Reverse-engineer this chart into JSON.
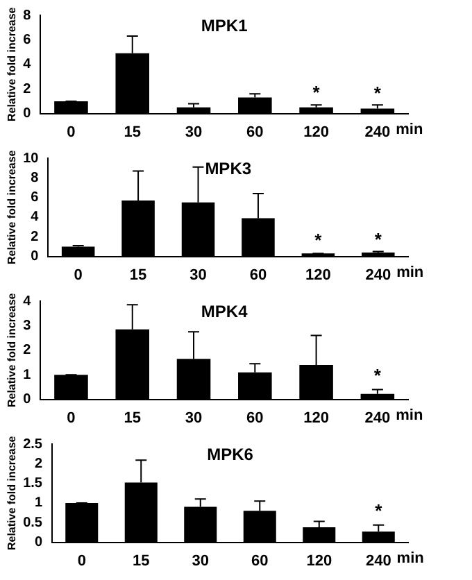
{
  "chart_data": [
    {
      "type": "bar",
      "title": "MPK1",
      "ylabel": "Relative fold increase",
      "xlabel": "min",
      "categories": [
        "0",
        "15",
        "30",
        "60",
        "120",
        "240"
      ],
      "values": [
        1.0,
        4.9,
        0.5,
        1.3,
        0.5,
        0.4
      ],
      "errors": [
        [
          1.0,
          1.0
        ],
        [
          4.9,
          6.3
        ],
        [
          0.5,
          0.8
        ],
        [
          1.3,
          1.6
        ],
        [
          0.5,
          0.7
        ],
        [
          0.4,
          0.7
        ]
      ],
      "color": "#000000",
      "ylim": [
        0,
        8
      ],
      "yticks": [
        0,
        2,
        4,
        6,
        8
      ],
      "grid": false,
      "legend": false,
      "annotations": [
        {
          "text": "*",
          "x": "120",
          "y": 0.9
        },
        {
          "text": "*",
          "x": "240",
          "y": 0.85
        }
      ]
    },
    {
      "type": "bar",
      "title": "MPK3",
      "ylabel": "Relative fold increase",
      "xlabel": "min",
      "categories": [
        "0",
        "15",
        "30",
        "60",
        "120",
        "240"
      ],
      "values": [
        1.0,
        5.7,
        5.5,
        3.9,
        0.3,
        0.4
      ],
      "errors": [
        [
          1.0,
          1.1
        ],
        [
          5.7,
          8.7
        ],
        [
          5.5,
          9.1
        ],
        [
          3.9,
          6.4
        ],
        [
          0.3,
          0.3
        ],
        [
          0.4,
          0.5
        ]
      ],
      "color": "#000000",
      "ylim": [
        0,
        10
      ],
      "yticks": [
        0,
        2,
        4,
        6,
        8,
        10
      ],
      "grid": false,
      "legend": false,
      "annotations": [
        {
          "text": "*",
          "x": "120",
          "y": 0.6
        },
        {
          "text": "*",
          "x": "240",
          "y": 0.7
        }
      ]
    },
    {
      "type": "bar",
      "title": "MPK4",
      "ylabel": "Relative fold increase",
      "xlabel": "min",
      "categories": [
        "0",
        "15",
        "30",
        "60",
        "120",
        "240"
      ],
      "values": [
        1.0,
        2.85,
        1.65,
        1.1,
        1.4,
        0.22
      ],
      "errors": [
        [
          1.0,
          1.0
        ],
        [
          2.85,
          3.85
        ],
        [
          1.65,
          2.75
        ],
        [
          1.1,
          1.45
        ],
        [
          1.4,
          2.6
        ],
        [
          0.22,
          0.4
        ]
      ],
      "color": "#000000",
      "ylim": [
        0,
        4
      ],
      "yticks": [
        0,
        1,
        2,
        3,
        4
      ],
      "grid": false,
      "legend": false,
      "annotations": [
        {
          "text": "*",
          "x": "240",
          "y": 0.55
        }
      ]
    },
    {
      "type": "bar",
      "title": "MPK6",
      "ylabel": "Relative fold increase",
      "xlabel": "min",
      "categories": [
        "0",
        "15",
        "30",
        "60",
        "120",
        "240"
      ],
      "values": [
        1.0,
        1.52,
        0.9,
        0.8,
        0.38,
        0.27
      ],
      "errors": [
        [
          1.0,
          1.0
        ],
        [
          1.52,
          2.09
        ],
        [
          0.9,
          1.1
        ],
        [
          0.8,
          1.05
        ],
        [
          0.38,
          0.53
        ],
        [
          0.27,
          0.44
        ]
      ],
      "color": "#000000",
      "ylim": [
        0,
        2.5
      ],
      "yticks": [
        0,
        0.5,
        1,
        1.5,
        2,
        2.5
      ],
      "grid": false,
      "legend": false,
      "annotations": [
        {
          "text": "*",
          "x": "240",
          "y": 0.55
        }
      ]
    }
  ]
}
